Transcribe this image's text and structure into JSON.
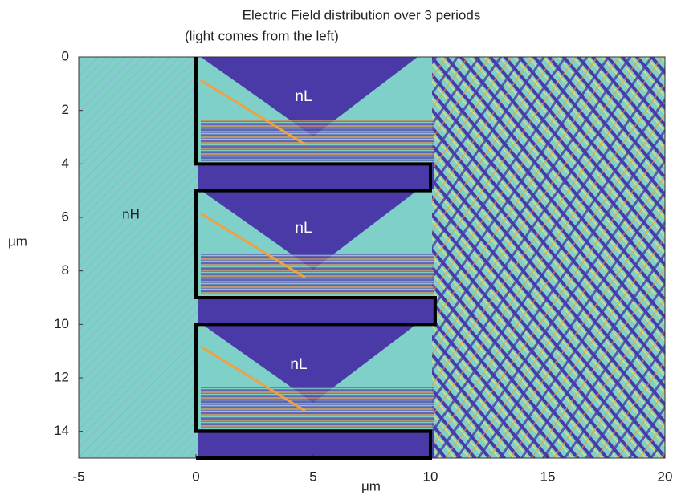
{
  "chart_data": {
    "type": "heatmap",
    "title": "Electric Field distribution over 3 periods",
    "subtitle": "(light comes from the left)",
    "x_label": "μm",
    "y_label": "μm",
    "xlim": [
      -5,
      20
    ],
    "xticks": [
      -5,
      0,
      5,
      10,
      15,
      20
    ],
    "ylim": [
      0,
      15
    ],
    "yticks": [
      0,
      2,
      4,
      6,
      8,
      10,
      12,
      14
    ],
    "y_inverted": true,
    "annotations": [
      "nH",
      "nL",
      "nL",
      "nL"
    ],
    "outline": {
      "color": "#000000",
      "x": [
        0,
        0,
        10,
        10,
        0,
        0,
        10.2,
        10.2,
        0,
        0,
        10,
        10,
        0
      ],
      "y": [
        0,
        4,
        4,
        5,
        5,
        9,
        9,
        10,
        10,
        14,
        14,
        15,
        15
      ]
    }
  }
}
